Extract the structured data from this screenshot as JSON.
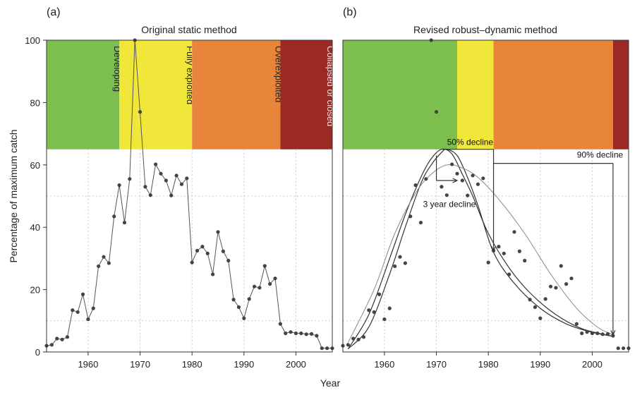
{
  "figure": {
    "xlabel": "Year",
    "ylabel": "Percentage of maximum catch"
  },
  "chart_data": [
    {
      "type": "line",
      "panel": "(a)",
      "title": "Original static method",
      "xlim": [
        1952,
        2007
      ],
      "ylim": [
        0,
        100
      ],
      "x_ticks": [
        1960,
        1970,
        1980,
        1990,
        2000
      ],
      "y_ticks": [
        0,
        20,
        40,
        60,
        80,
        100
      ],
      "grid": "dotted",
      "zones": [
        {
          "label": "Developing",
          "from": 1952,
          "to": 1966,
          "color": "#7dbf4e"
        },
        {
          "label": "Fully exploited",
          "from": 1966,
          "to": 1980,
          "color": "#f1e73b"
        },
        {
          "label": "Overexploited",
          "from": 1980,
          "to": 1997,
          "color": "#e9853a"
        },
        {
          "label": "Collapsed or closed",
          "from": 1997,
          "to": 2007,
          "color": "#9b2a25"
        }
      ],
      "zone_band": [
        65,
        100
      ],
      "series": [
        {
          "x": [
            1952,
            1953,
            1954,
            1955,
            1956,
            1957,
            1958,
            1959,
            1960,
            1961,
            1962,
            1963,
            1964,
            1965,
            1966,
            1967,
            1968,
            1969,
            1970,
            1971,
            1972,
            1973,
            1974,
            1975,
            1976,
            1977,
            1978,
            1979,
            1980,
            1981,
            1982,
            1983,
            1984,
            1985,
            1986,
            1987,
            1988,
            1989,
            1990,
            1991,
            1992,
            1993,
            1994,
            1995,
            1996,
            1997,
            1998,
            1999,
            2000,
            2001,
            2002,
            2003,
            2004,
            2005,
            2006,
            2007
          ],
          "y": [
            2,
            2.3,
            4.3,
            4,
            4.8,
            13.4,
            12.8,
            18.5,
            10.5,
            14,
            27.5,
            30.5,
            28.5,
            43.5,
            53.5,
            41.5,
            55.5,
            100,
            77,
            53,
            50.3,
            60.2,
            57.2,
            55,
            50.2,
            56.6,
            53.8,
            55.7,
            28.7,
            32.5,
            33.8,
            31.6,
            24.9,
            38.5,
            32.3,
            29.3,
            16.8,
            14.4,
            10.8,
            17,
            21,
            20.6,
            27.6,
            21.8,
            23.6,
            9,
            6,
            6.4,
            6,
            6,
            5.7,
            5.8,
            5.2,
            1.2,
            1.2,
            1.2
          ]
        }
      ]
    },
    {
      "type": "scatter",
      "panel": "(b)",
      "title": "Revised robust–dynamic method",
      "xlim": [
        1952,
        2007
      ],
      "ylim": [
        0,
        100
      ],
      "x_ticks": [
        1960,
        1970,
        1980,
        1990,
        2000
      ],
      "grid": "dotted",
      "zones": [
        {
          "from": 1952,
          "to": 1974,
          "color": "#7dbf4e"
        },
        {
          "from": 1974,
          "to": 1981,
          "color": "#f1e73b"
        },
        {
          "from": 1981,
          "to": 2004,
          "color": "#e9853a"
        },
        {
          "from": 2004,
          "to": 2007,
          "color": "#9b2a25"
        }
      ],
      "zone_band": [
        65,
        100
      ],
      "series": [
        {
          "x": [
            1952,
            1953,
            1954,
            1955,
            1956,
            1957,
            1958,
            1959,
            1960,
            1961,
            1962,
            1963,
            1964,
            1965,
            1966,
            1967,
            1968,
            1969,
            1970,
            1971,
            1972,
            1973,
            1974,
            1975,
            1976,
            1977,
            1978,
            1979,
            1980,
            1981,
            1982,
            1983,
            1984,
            1985,
            1986,
            1987,
            1988,
            1989,
            1990,
            1991,
            1992,
            1993,
            1994,
            1995,
            1996,
            1997,
            1998,
            1999,
            2000,
            2001,
            2002,
            2003,
            2004,
            2005,
            2006,
            2007
          ],
          "y": [
            2,
            2.3,
            4.3,
            4,
            4.8,
            13.4,
            12.8,
            18.5,
            10.5,
            14,
            27.5,
            30.5,
            28.5,
            43.5,
            53.5,
            41.5,
            55.5,
            100,
            77,
            53,
            50.3,
            60.2,
            57.2,
            55,
            50.2,
            56.6,
            53.8,
            55.7,
            28.7,
            32.5,
            33.8,
            31.6,
            24.9,
            38.5,
            32.3,
            29.3,
            16.8,
            14.4,
            10.8,
            17,
            21,
            20.6,
            27.6,
            21.8,
            23.6,
            9,
            6,
            6.4,
            6,
            6,
            5.7,
            5.8,
            5.2,
            1.2,
            1.2,
            1.2
          ]
        }
      ],
      "smooth_curves": [
        {
          "x": [
            1953,
            1957,
            1961,
            1964,
            1967,
            1969,
            1971,
            1973,
            1975,
            1977,
            1980,
            1984,
            1988,
            1993,
            1998,
            2004
          ],
          "y": [
            1,
            12,
            30,
            44,
            56,
            62,
            65,
            63.5,
            57,
            50,
            38,
            27,
            19,
            12,
            7.5,
            5
          ]
        },
        {
          "x": [
            1953,
            1957,
            1961,
            1964,
            1967,
            1969,
            1971,
            1972,
            1974,
            1976,
            1978,
            1981,
            1985,
            1990,
            1995,
            2000,
            2004
          ],
          "y": [
            1,
            8,
            25,
            40,
            54,
            60,
            64,
            65,
            63,
            56,
            47,
            32,
            22,
            14,
            9,
            6.3,
            5
          ]
        },
        {
          "x": [
            1953,
            1958,
            1962,
            1966,
            1969,
            1972,
            1975,
            1978,
            1982,
            1987,
            1992,
            1997,
            2001,
            2004
          ],
          "y": [
            3,
            20,
            38,
            51,
            57,
            60,
            59,
            56,
            49,
            38,
            25,
            14,
            8,
            5.5
          ]
        }
      ],
      "annotations": [
        {
          "text": "50% decline"
        },
        {
          "text": "90% decline"
        },
        {
          "text": "3 year decline"
        }
      ]
    }
  ]
}
